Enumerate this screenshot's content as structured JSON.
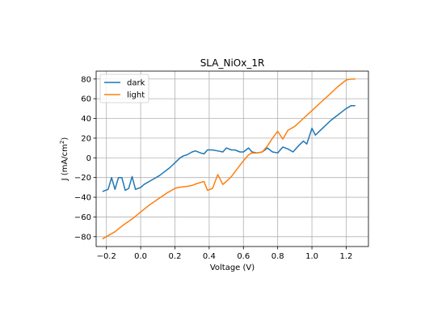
{
  "chart_data": {
    "type": "line",
    "title": "SLA_NiOx_1R",
    "xlabel": "Voltage (V)",
    "ylabel": "J (mA/cm²)",
    "ylabel_parts": {
      "pre": "J (mA/cm",
      "sup": "2",
      "post": ")"
    },
    "xlim": [
      -0.26,
      1.33
    ],
    "ylim": [
      -90,
      88
    ],
    "xticks": [
      -0.2,
      0.0,
      0.2,
      0.4,
      0.6,
      0.8,
      1.0,
      1.2
    ],
    "xtick_labels": [
      "−0.2",
      "0.0",
      "0.2",
      "0.4",
      "0.6",
      "0.8",
      "1.0",
      "1.2"
    ],
    "yticks": [
      -80,
      -60,
      -40,
      -20,
      0,
      20,
      40,
      60,
      80
    ],
    "ytick_labels": [
      "−80",
      "−60",
      "−40",
      "−20",
      "0",
      "20",
      "40",
      "60",
      "80"
    ],
    "grid": true,
    "legend_position": "top-left",
    "series": [
      {
        "name": "dark",
        "color": "#1f77b4",
        "x": [
          -0.22,
          -0.19,
          -0.17,
          -0.15,
          -0.13,
          -0.11,
          -0.09,
          -0.07,
          -0.05,
          -0.03,
          0.0,
          0.02,
          0.05,
          0.08,
          0.11,
          0.14,
          0.17,
          0.2,
          0.23,
          0.25,
          0.27,
          0.3,
          0.32,
          0.35,
          0.37,
          0.39,
          0.42,
          0.45,
          0.48,
          0.5,
          0.53,
          0.55,
          0.58,
          0.6,
          0.63,
          0.65,
          0.68,
          0.71,
          0.74,
          0.77,
          0.8,
          0.83,
          0.86,
          0.89,
          0.92,
          0.95,
          0.97,
          1.0,
          1.02,
          1.05,
          1.08,
          1.11,
          1.14,
          1.17,
          1.2,
          1.23,
          1.25
        ],
        "y": [
          -34,
          -32,
          -20,
          -32,
          -20,
          -20,
          -33,
          -31,
          -19,
          -32,
          -30,
          -27,
          -24,
          -21,
          -18,
          -14,
          -10,
          -5,
          0,
          2,
          3,
          6,
          7,
          5,
          4,
          8,
          8,
          7,
          6,
          10,
          8,
          8,
          6,
          6,
          10,
          6,
          5,
          6,
          10,
          6,
          5,
          11,
          9,
          6,
          12,
          17,
          14,
          30,
          23,
          28,
          33,
          38,
          42,
          46,
          50,
          53,
          53
        ]
      },
      {
        "name": "light",
        "color": "#ff7f0e",
        "x": [
          -0.22,
          -0.15,
          -0.1,
          -0.05,
          0.0,
          0.05,
          0.1,
          0.15,
          0.2,
          0.22,
          0.27,
          0.3,
          0.33,
          0.37,
          0.39,
          0.42,
          0.45,
          0.48,
          0.5,
          0.53,
          0.56,
          0.6,
          0.63,
          0.65,
          0.68,
          0.71,
          0.74,
          0.77,
          0.8,
          0.83,
          0.86,
          0.9,
          0.95,
          1.0,
          1.05,
          1.1,
          1.15,
          1.2,
          1.23,
          1.25
        ],
        "y": [
          -82,
          -75,
          -68,
          -62,
          -55,
          -48,
          -42,
          -36,
          -31,
          -30,
          -29,
          -28,
          -26,
          -24,
          -33,
          -31,
          -17,
          -27,
          -24,
          -19,
          -12,
          -3,
          3,
          5,
          5,
          6,
          12,
          20,
          27,
          19,
          28,
          32,
          40,
          48,
          56,
          64,
          72,
          79,
          80,
          80
        ]
      }
    ]
  }
}
